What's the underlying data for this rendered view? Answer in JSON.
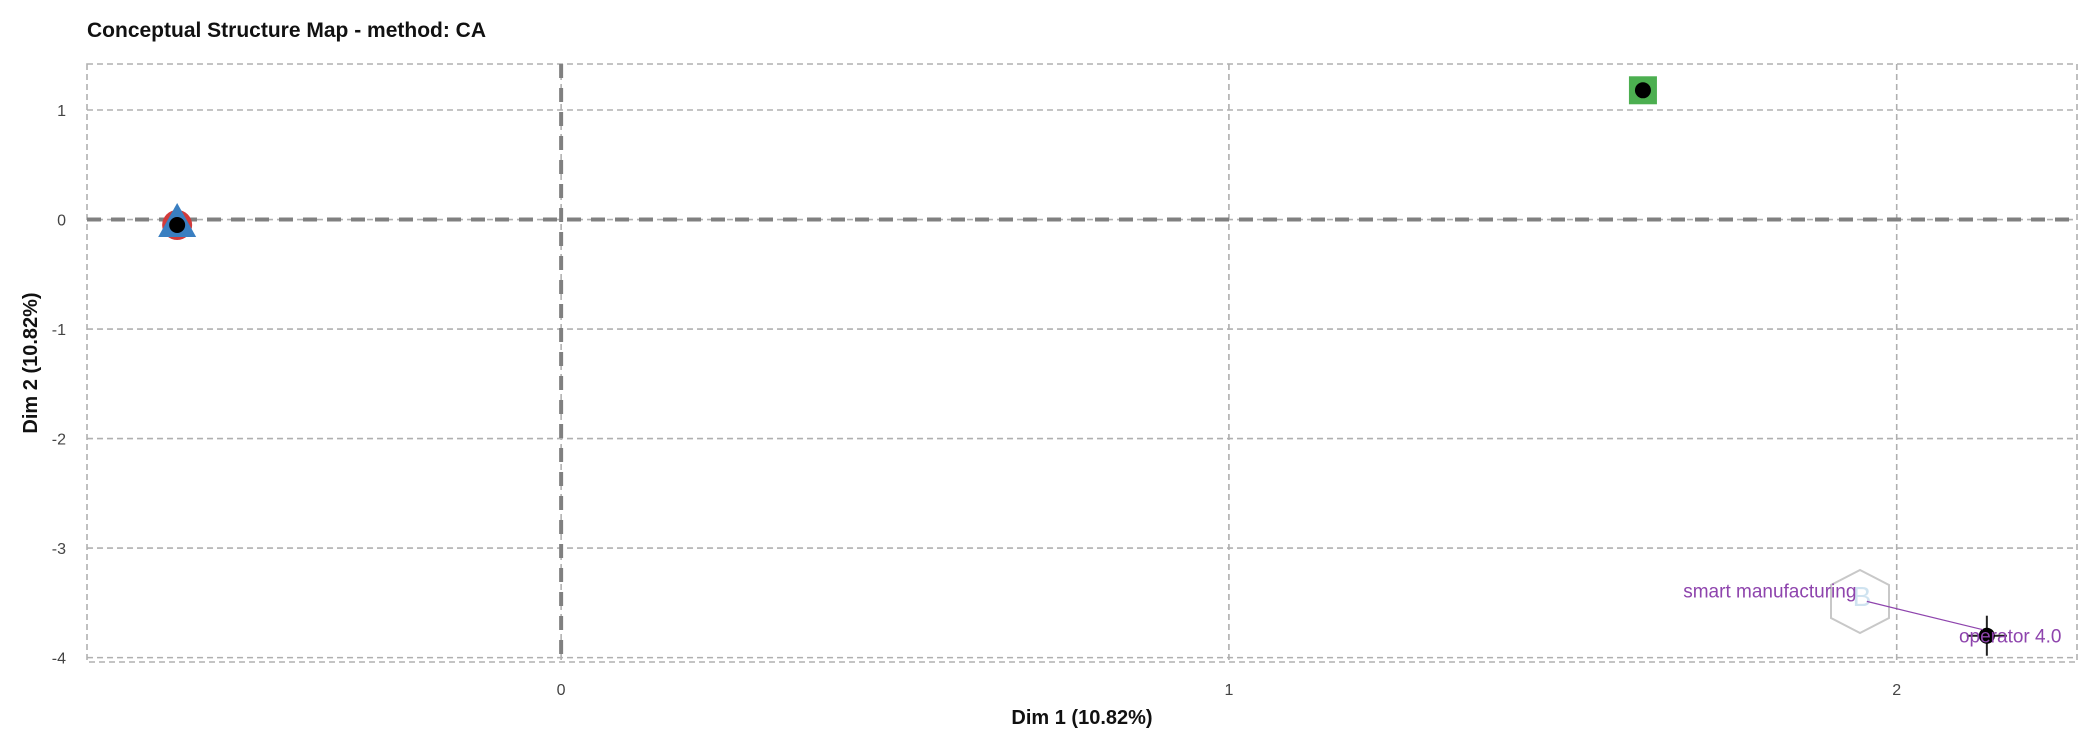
{
  "chart_data": {
    "type": "scatter",
    "title": "Conceptual Structure Map - method: CA",
    "xlabel": "Dim 1 (10.82%)",
    "ylabel": "Dim 2 (10.82%)",
    "xlim": [
      -0.71,
      2.27
    ],
    "ylim": [
      -4.04,
      1.42
    ],
    "xticks": [
      "0",
      "1",
      "2"
    ],
    "yticks": [
      "1",
      "0",
      "-1",
      "-2",
      "-3",
      "-4"
    ],
    "grid": true,
    "origin_lines": true,
    "clusters": [
      {
        "color": "#d23b3b",
        "shape": "circle",
        "points": [
          {
            "x": -0.575,
            "y": -0.05
          }
        ]
      },
      {
        "color": "#3a7fc1",
        "shape": "triangle",
        "points": [
          {
            "x": -0.575,
            "y": -0.05
          }
        ]
      },
      {
        "color": "#4caf50",
        "shape": "square",
        "points": [
          {
            "x": 1.62,
            "y": 1.18
          }
        ]
      },
      {
        "color": "#222222",
        "shape": "cross",
        "points": [
          {
            "x": 2.135,
            "y": -3.8
          }
        ]
      }
    ],
    "labels": [
      {
        "text": "smart manufacturing",
        "x": 1.81,
        "y": -3.45,
        "color": "#8e44ad"
      },
      {
        "text": "operator 4.0",
        "x": 2.17,
        "y": -3.86,
        "color": "#8e44ad"
      }
    ]
  },
  "watermark_icon": "hexagon-logo"
}
